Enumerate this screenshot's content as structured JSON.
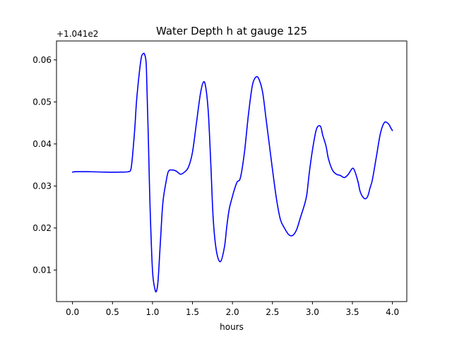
{
  "chart_data": {
    "type": "line",
    "title": "Water Depth h at gauge 125",
    "xlabel": "hours",
    "ylabel": "",
    "y_offset_label": "+1.041e2",
    "xlim": [
      -0.2,
      4.18
    ],
    "ylim": [
      0.0025,
      0.0645
    ],
    "grid": false,
    "x_ticks": [
      0.0,
      0.5,
      1.0,
      1.5,
      2.0,
      2.5,
      3.0,
      3.5,
      4.0
    ],
    "x_tick_labels": [
      "0.0",
      "0.5",
      "1.0",
      "1.5",
      "2.0",
      "2.5",
      "3.0",
      "3.5",
      "4.0"
    ],
    "y_ticks": [
      0.01,
      0.02,
      0.03,
      0.04,
      0.05,
      0.06
    ],
    "y_tick_labels": [
      "0.01",
      "0.02",
      "0.03",
      "0.04",
      "0.05",
      "0.06"
    ],
    "series": [
      {
        "color": "#0000ff",
        "x": [
          0.0,
          0.05,
          0.2,
          0.4,
          0.6,
          0.7,
          0.73,
          0.75,
          0.78,
          0.8,
          0.83,
          0.86,
          0.88,
          0.9,
          0.92,
          0.93,
          0.95,
          0.97,
          1.0,
          1.03,
          1.05,
          1.07,
          1.1,
          1.13,
          1.17,
          1.2,
          1.25,
          1.3,
          1.35,
          1.4,
          1.45,
          1.5,
          1.55,
          1.6,
          1.64,
          1.67,
          1.7,
          1.73,
          1.76,
          1.8,
          1.85,
          1.9,
          1.93,
          1.96,
          2.0,
          2.03,
          2.06,
          2.1,
          2.15,
          2.2,
          2.25,
          2.3,
          2.34,
          2.38,
          2.42,
          2.46,
          2.5,
          2.55,
          2.6,
          2.65,
          2.7,
          2.75,
          2.8,
          2.85,
          2.9,
          2.93,
          2.96,
          3.0,
          3.05,
          3.1,
          3.13,
          3.17,
          3.2,
          3.25,
          3.3,
          3.35,
          3.4,
          3.45,
          3.5,
          3.53,
          3.57,
          3.6,
          3.65,
          3.69,
          3.72,
          3.75,
          3.8,
          3.85,
          3.9,
          3.95,
          3.98,
          4.0
        ],
        "y": [
          0.0333,
          0.0334,
          0.0334,
          0.0333,
          0.0333,
          0.0334,
          0.034,
          0.037,
          0.044,
          0.05,
          0.056,
          0.0605,
          0.0614,
          0.0614,
          0.0595,
          0.054,
          0.04,
          0.025,
          0.01,
          0.0055,
          0.005,
          0.0075,
          0.017,
          0.026,
          0.031,
          0.0335,
          0.0338,
          0.0335,
          0.0328,
          0.0333,
          0.0345,
          0.038,
          0.045,
          0.052,
          0.0548,
          0.053,
          0.047,
          0.035,
          0.022,
          0.0145,
          0.012,
          0.0155,
          0.0205,
          0.0245,
          0.0275,
          0.0295,
          0.031,
          0.032,
          0.038,
          0.047,
          0.054,
          0.056,
          0.055,
          0.052,
          0.046,
          0.04,
          0.034,
          0.027,
          0.022,
          0.02,
          0.0185,
          0.0182,
          0.0195,
          0.0225,
          0.0255,
          0.028,
          0.033,
          0.0385,
          0.0435,
          0.0442,
          0.042,
          0.0395,
          0.0365,
          0.0338,
          0.0328,
          0.0325,
          0.032,
          0.0328,
          0.0342,
          0.0335,
          0.031,
          0.0285,
          0.027,
          0.0275,
          0.0295,
          0.0315,
          0.037,
          0.0425,
          0.0451,
          0.0448,
          0.0438,
          0.0432
        ]
      }
    ]
  }
}
